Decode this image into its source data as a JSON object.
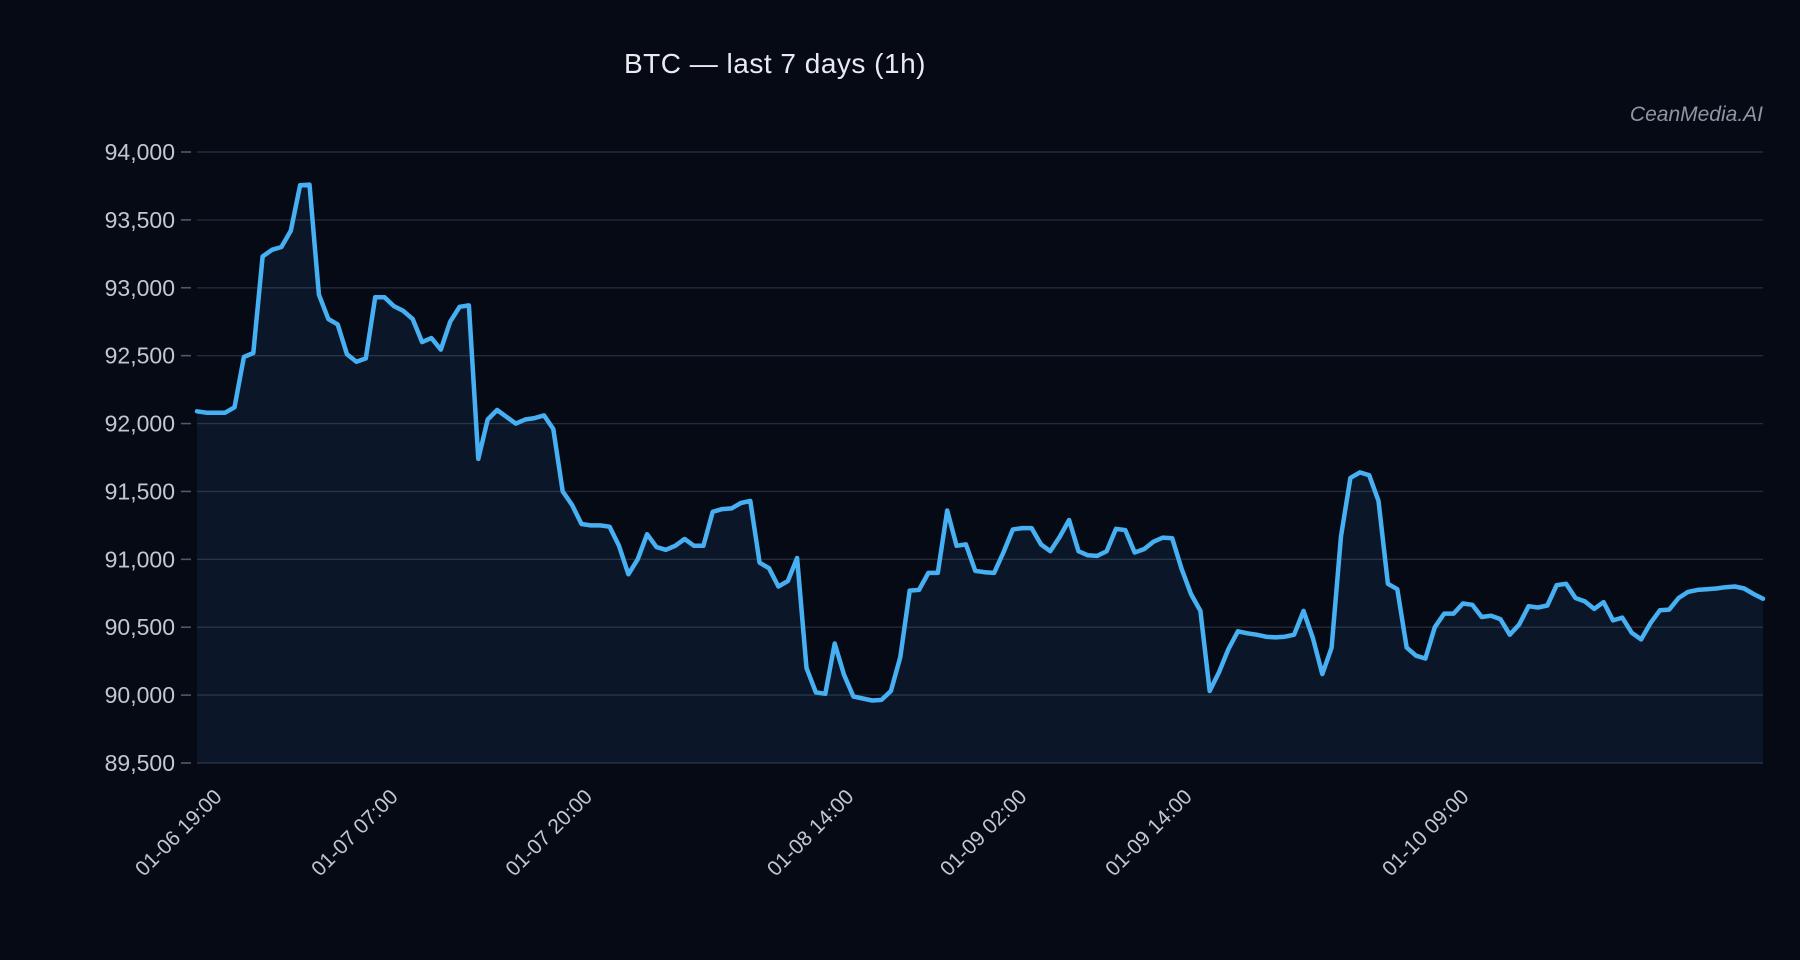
{
  "title": "BTC — last 7 days (1h)",
  "watermark": "CeanMedia.AI",
  "chart_data": {
    "type": "area",
    "title": "BTC — last 7 days (1h)",
    "xlabel": "",
    "ylabel": "",
    "ylim": [
      89500,
      94000
    ],
    "grid": true,
    "legend": false,
    "y_ticks": [
      89500,
      90000,
      90500,
      91000,
      91500,
      92000,
      92500,
      93000,
      93500,
      94000
    ],
    "x_ticks": [
      {
        "label": "01-06 19:00",
        "pos": 0.0115
      },
      {
        "label": "01-07 07:00",
        "pos": 0.124
      },
      {
        "label": "01-07 20:00",
        "pos": 0.248
      },
      {
        "label": "01-08 14:00",
        "pos": 0.415
      },
      {
        "label": "01-09 02:00",
        "pos": 0.5255
      },
      {
        "label": "01-09 14:00",
        "pos": 0.631
      },
      {
        "label": "01-10 09:00",
        "pos": 0.8078
      }
    ],
    "values": [
      92090,
      92080,
      92080,
      92080,
      92120,
      92490,
      92520,
      93230,
      93280,
      93300,
      93420,
      93755,
      93760,
      92950,
      92770,
      92730,
      92510,
      92455,
      92480,
      92930,
      92930,
      92865,
      92830,
      92770,
      92600,
      92630,
      92545,
      92750,
      92860,
      92870,
      91740,
      92030,
      92100,
      92050,
      92000,
      92030,
      92040,
      92060,
      91960,
      91500,
      91400,
      91260,
      91250,
      91250,
      91240,
      91100,
      90890,
      91000,
      91185,
      91090,
      91070,
      91100,
      91150,
      91100,
      91100,
      91350,
      91370,
      91375,
      91415,
      91430,
      90975,
      90935,
      90800,
      90840,
      91010,
      90200,
      90020,
      90010,
      90380,
      90150,
      89990,
      89975,
      89960,
      89965,
      90030,
      90280,
      90770,
      90775,
      90900,
      90900,
      91360,
      91100,
      91110,
      90915,
      90905,
      90900,
      91050,
      91220,
      91230,
      91230,
      91110,
      91060,
      91165,
      91290,
      91060,
      91030,
      91025,
      91060,
      91225,
      91215,
      91050,
      91075,
      91130,
      91160,
      91155,
      90930,
      90745,
      90620,
      90030,
      90170,
      90340,
      90470,
      90455,
      90445,
      90430,
      90425,
      90430,
      90445,
      90620,
      90420,
      90155,
      90350,
      91170,
      91600,
      91640,
      91620,
      91430,
      90820,
      90780,
      90350,
      90290,
      90270,
      90500,
      90600,
      90600,
      90675,
      90665,
      90575,
      90585,
      90560,
      90445,
      90520,
      90655,
      90645,
      90660,
      90810,
      90820,
      90715,
      90690,
      90635,
      90685,
      90550,
      90570,
      90460,
      90410,
      90530,
      90625,
      90630,
      90715,
      90760,
      90775,
      90780,
      90785,
      90795,
      90800,
      90785,
      90745,
      90710
    ],
    "colors": {
      "background": "#050a15",
      "line": "#46b0f2",
      "fill": "rgba(70,150,215,0.10)",
      "grid": "#242b3a",
      "tick_label": "#c3c7d1",
      "tick_mark": "#515867",
      "title": "#e9ebf0",
      "watermark": "#8f96a3"
    }
  }
}
